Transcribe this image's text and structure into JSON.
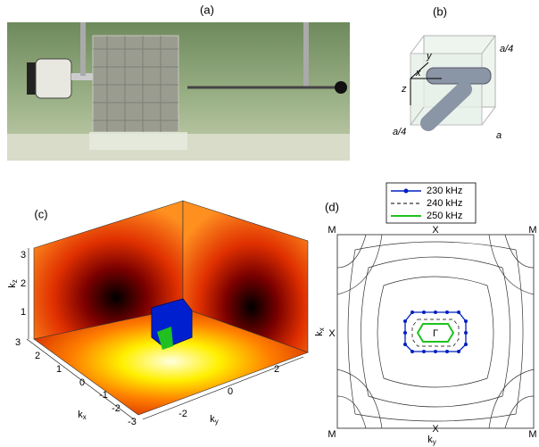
{
  "panels": {
    "a": {
      "label": "(a)"
    },
    "b": {
      "label": "(b)",
      "axes": [
        "y",
        "x",
        "z"
      ],
      "dims": [
        "a/4",
        "a/4",
        "a"
      ]
    },
    "c": {
      "label": "(c)",
      "kz_ticks": [
        3,
        2,
        1
      ],
      "kx_ticks": [
        3,
        2,
        1,
        0,
        -1,
        -2,
        -3
      ],
      "ky_ticks": [
        -2,
        0,
        2
      ],
      "kz": {
        "main": "k",
        "sub": "z"
      },
      "kx": {
        "main": "k",
        "sub": "x"
      },
      "ky": {
        "main": "k",
        "sub": "y"
      }
    },
    "d": {
      "label": "(d)",
      "legend": [
        "230 kHz",
        "240 kHz",
        "250 kHz"
      ],
      "top": [
        "M",
        "X",
        "M"
      ],
      "bottom": [
        "M",
        "X",
        "M"
      ],
      "left": "X",
      "center": "Γ",
      "kx": {
        "main": "k",
        "sub": "x"
      },
      "ky": {
        "main": "k",
        "sub": "y"
      }
    }
  }
}
